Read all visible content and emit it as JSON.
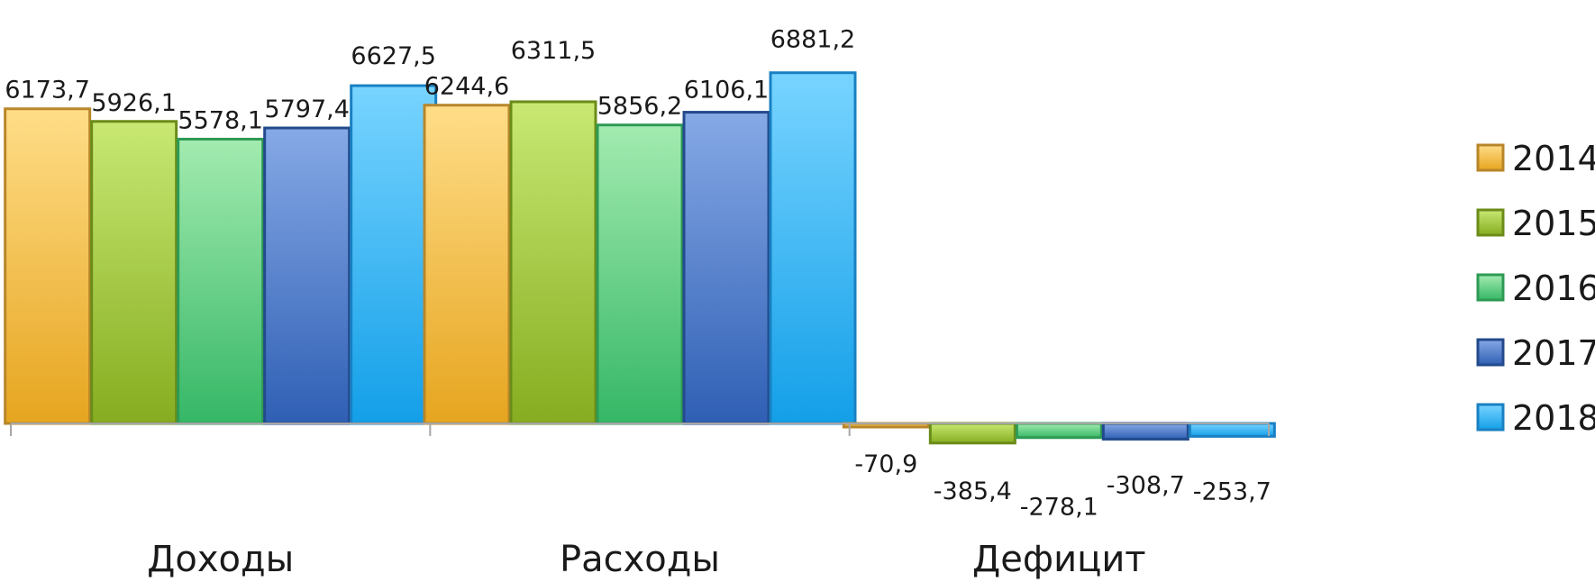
{
  "chart_data": {
    "type": "bar",
    "categories": [
      "Доходы",
      "Расходы",
      "Дефицит"
    ],
    "series": [
      {
        "name": "2014",
        "values": [
          6173.7,
          6244.6,
          -70.9
        ],
        "labels": [
          "6173,7",
          "6244,6",
          "-70,9"
        ]
      },
      {
        "name": "2015",
        "values": [
          5926.1,
          6311.5,
          -385.4
        ],
        "labels": [
          "5926,1",
          "6311,5",
          "-385,4"
        ]
      },
      {
        "name": "2016",
        "values": [
          5578.1,
          5856.2,
          -278.1
        ],
        "labels": [
          "5578,1",
          "5856,2",
          "-278,1"
        ]
      },
      {
        "name": "2017",
        "values": [
          5797.4,
          6106.1,
          -308.7
        ],
        "labels": [
          "5797,4",
          "6106,1",
          "-308,7"
        ]
      },
      {
        "name": "2018",
        "values": [
          6627.5,
          6881.2,
          -253.7
        ],
        "labels": [
          "6627,5",
          "6881,2",
          "-253,7"
        ]
      }
    ],
    "ylim": [
      -800,
      7300
    ],
    "grid": false,
    "legend": "right"
  },
  "colors": {
    "2014": {
      "top": "#ffdd88",
      "bottom": "#e6a51f",
      "stroke": "#b8862a"
    },
    "2015": {
      "top": "#c8e873",
      "bottom": "#86ad20",
      "stroke": "#6b8c18"
    },
    "2016": {
      "top": "#a3ebb0",
      "bottom": "#35b766",
      "stroke": "#2e9a55"
    },
    "2017": {
      "top": "#86a9e6",
      "bottom": "#2f5fb4",
      "stroke": "#234a8c"
    },
    "2018": {
      "top": "#78d4ff",
      "bottom": "#139fe8",
      "stroke": "#1a80c2"
    },
    "axis": "#a6a6a6"
  }
}
